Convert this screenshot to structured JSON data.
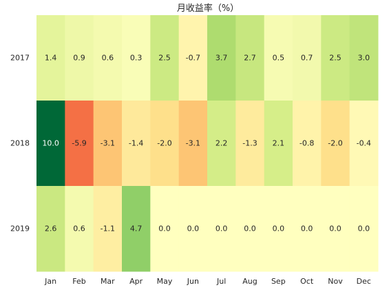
{
  "chart_data": {
    "type": "heatmap",
    "title": "月收益率（%）",
    "xlabel": "",
    "ylabel": "",
    "x_categories": [
      "Jan",
      "Feb",
      "Mar",
      "Apr",
      "May",
      "Jun",
      "Jul",
      "Aug",
      "Sep",
      "Oct",
      "Nov",
      "Dec"
    ],
    "y_categories": [
      "2017",
      "2018",
      "2019"
    ],
    "values": [
      [
        1.4,
        0.9,
        0.6,
        0.3,
        2.5,
        -0.7,
        3.7,
        2.7,
        0.5,
        0.7,
        2.5,
        3.0
      ],
      [
        10.0,
        -5.9,
        -3.1,
        -1.4,
        -2.0,
        -3.1,
        2.2,
        -1.3,
        2.1,
        -0.8,
        -2.0,
        -0.4
      ],
      [
        2.6,
        0.6,
        -1.1,
        4.7,
        0.0,
        0.0,
        0.0,
        0.0,
        0.0,
        0.0,
        0.0,
        0.0
      ]
    ],
    "value_format": "0.0",
    "colormap": "RdYlGn",
    "color_center": 0,
    "colorbar": false,
    "grid": false
  }
}
